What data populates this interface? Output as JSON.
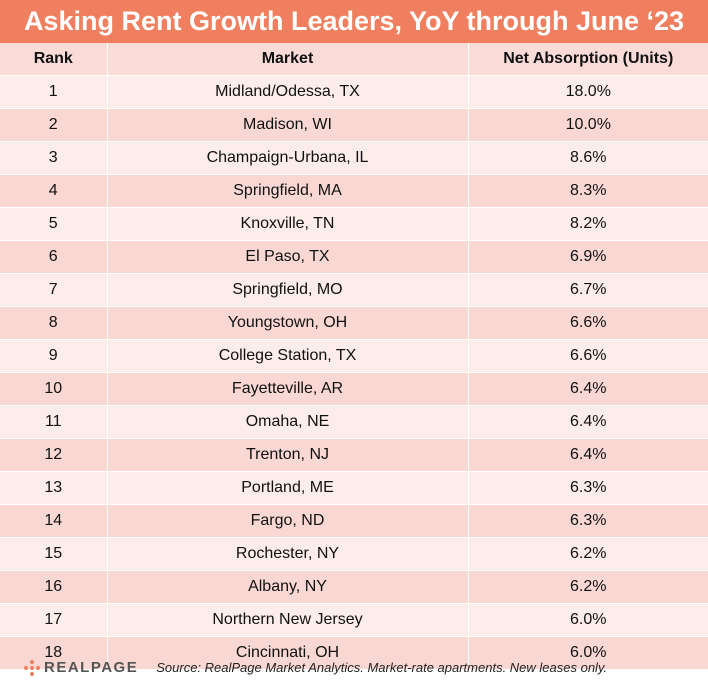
{
  "title": "Asking Rent Growth Leaders, YoY through June ‘23",
  "columns": {
    "rank": "Rank",
    "market": "Market",
    "net": "Net Absorption (Units)"
  },
  "rows": [
    {
      "rank": "1",
      "market": "Midland/Odessa, TX",
      "net": "18.0%"
    },
    {
      "rank": "2",
      "market": "Madison, WI",
      "net": "10.0%"
    },
    {
      "rank": "3",
      "market": "Champaign-Urbana, IL",
      "net": "8.6%"
    },
    {
      "rank": "4",
      "market": "Springfield, MA",
      "net": "8.3%"
    },
    {
      "rank": "5",
      "market": "Knoxville, TN",
      "net": "8.2%"
    },
    {
      "rank": "6",
      "market": "El Paso, TX",
      "net": "6.9%"
    },
    {
      "rank": "7",
      "market": "Springfield, MO",
      "net": "6.7%"
    },
    {
      "rank": "8",
      "market": "Youngstown, OH",
      "net": "6.6%"
    },
    {
      "rank": "9",
      "market": "College Station, TX",
      "net": "6.6%"
    },
    {
      "rank": "10",
      "market": "Fayetteville, AR",
      "net": "6.4%"
    },
    {
      "rank": "11",
      "market": "Omaha, NE",
      "net": "6.4%"
    },
    {
      "rank": "12",
      "market": "Trenton, NJ",
      "net": "6.4%"
    },
    {
      "rank": "13",
      "market": "Portland, ME",
      "net": "6.3%"
    },
    {
      "rank": "14",
      "market": "Fargo, ND",
      "net": "6.3%"
    },
    {
      "rank": "15",
      "market": "Rochester, NY",
      "net": "6.2%"
    },
    {
      "rank": "16",
      "market": "Albany, NY",
      "net": "6.2%"
    },
    {
      "rank": "17",
      "market": "Northern New Jersey",
      "net": "6.0%"
    },
    {
      "rank": "18",
      "market": "Cincinnati, OH",
      "net": "6.0%"
    }
  ],
  "footer": {
    "logo_text": "REALPAGE",
    "logo_icon": "realpage-dots-logo",
    "source": "Source: RealPage Market Analytics. Market-rate apartments. New leases only."
  },
  "colors": {
    "title_bar": "#f07f5f",
    "header_row": "#f9dcd8",
    "row_light": "#fcecea",
    "row_dark": "#f9d8d4"
  }
}
